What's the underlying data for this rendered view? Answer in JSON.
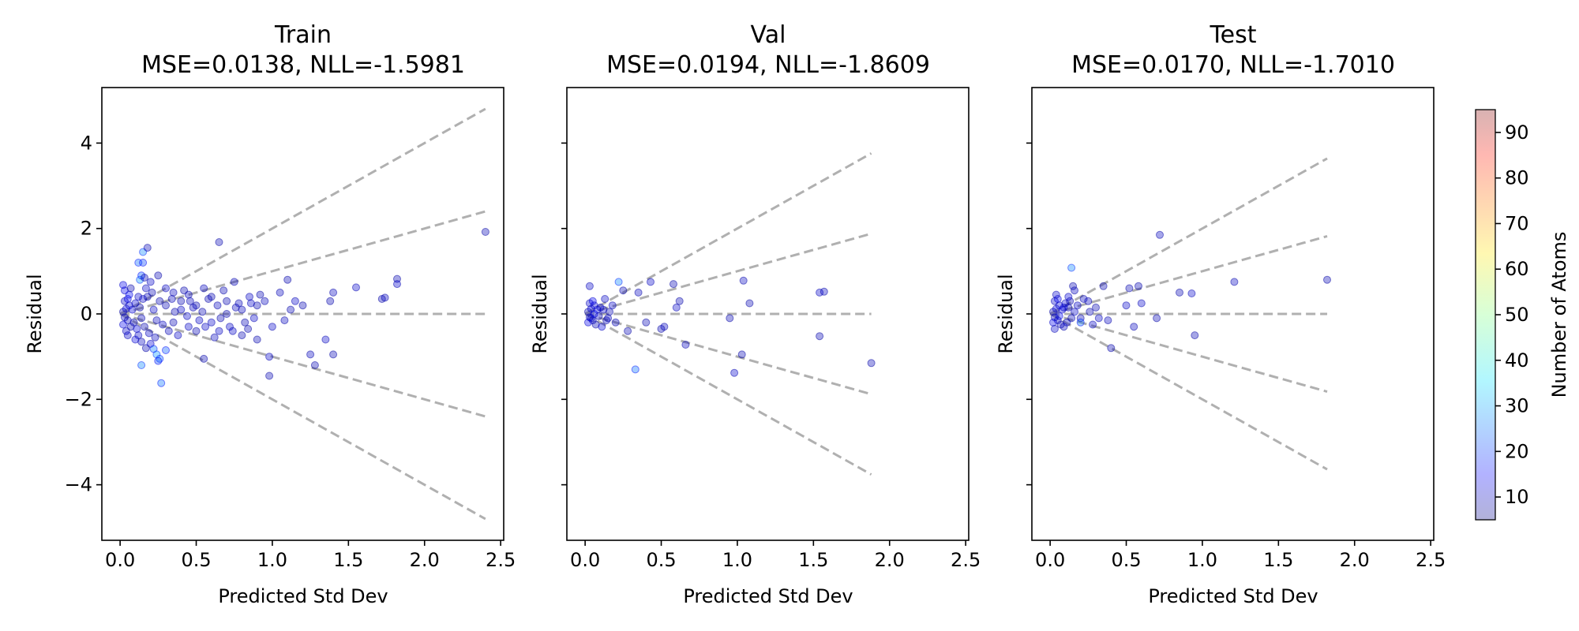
{
  "chart_data": [
    {
      "type": "scatter",
      "title": "Train",
      "subtitle": "MSE=0.0138, NLL=-1.5981",
      "xlabel": "Predicted Std Dev",
      "ylabel": "Residual",
      "xlim": [
        -0.12,
        2.52
      ],
      "ylim": [
        -5.3,
        5.3
      ],
      "xticks": [
        0.0,
        0.5,
        1.0,
        1.5,
        2.0,
        2.5
      ],
      "xticklabels": [
        "0.0",
        "0.5",
        "1.0",
        "1.5",
        "2.0",
        "2.5"
      ],
      "yticks": [
        4,
        2,
        0,
        -2,
        -4
      ],
      "yticklabels": [
        "4",
        "2",
        "0",
        "−2",
        "−4"
      ],
      "guide_max_x": 2.4,
      "guide_multipliers": [
        2,
        1,
        0,
        -1,
        -2
      ],
      "points": [
        [
          0.02,
          0.05,
          10
        ],
        [
          0.03,
          -0.08,
          12
        ],
        [
          0.04,
          0.12,
          14
        ],
        [
          0.05,
          -0.15,
          11
        ],
        [
          0.06,
          0.2,
          13
        ],
        [
          0.02,
          -0.25,
          15
        ],
        [
          0.03,
          0.3,
          12
        ],
        [
          0.05,
          0.35,
          16
        ],
        [
          0.07,
          -0.3,
          10
        ],
        [
          0.08,
          0.1,
          14
        ],
        [
          0.04,
          -0.4,
          12
        ],
        [
          0.06,
          0.45,
          17
        ],
        [
          0.09,
          -0.2,
          11
        ],
        [
          0.1,
          0.25,
          13
        ],
        [
          0.03,
          0.55,
          15
        ],
        [
          0.05,
          -0.5,
          12
        ],
        [
          0.07,
          0.6,
          10
        ],
        [
          0.11,
          -0.35,
          14
        ],
        [
          0.12,
          0.4,
          12
        ],
        [
          0.02,
          0.68,
          15
        ],
        [
          0.13,
          0.8,
          30
        ],
        [
          0.15,
          1.45,
          28
        ],
        [
          0.18,
          1.55,
          10
        ],
        [
          0.12,
          1.2,
          25
        ],
        [
          0.15,
          1.2,
          22
        ],
        [
          0.14,
          0.9,
          24
        ],
        [
          0.16,
          0.85,
          10
        ],
        [
          0.2,
          0.75,
          12
        ],
        [
          0.1,
          -0.6,
          14
        ],
        [
          0.14,
          -0.65,
          11
        ],
        [
          0.17,
          -0.8,
          10
        ],
        [
          0.2,
          -0.7,
          13
        ],
        [
          0.14,
          -1.2,
          28
        ],
        [
          0.24,
          -0.95,
          30
        ],
        [
          0.26,
          -1.05,
          26
        ],
        [
          0.25,
          -1.1,
          22
        ],
        [
          0.27,
          -1.62,
          26
        ],
        [
          0.22,
          -0.82,
          27
        ],
        [
          0.3,
          -0.85,
          24
        ],
        [
          0.25,
          0.9,
          10
        ],
        [
          0.3,
          0.6,
          12
        ],
        [
          0.35,
          0.5,
          11
        ],
        [
          0.4,
          0.3,
          10
        ],
        [
          0.45,
          -0.3,
          12
        ],
        [
          0.5,
          0.2,
          10
        ],
        [
          0.55,
          0.6,
          11
        ],
        [
          0.6,
          0.4,
          10
        ],
        [
          0.65,
          1.68,
          10
        ],
        [
          0.65,
          -0.4,
          12
        ],
        [
          0.7,
          0.3,
          10
        ],
        [
          0.75,
          0.75,
          11
        ],
        [
          0.8,
          -0.5,
          10
        ],
        [
          0.85,
          0.4,
          12
        ],
        [
          0.9,
          -0.6,
          10
        ],
        [
          0.95,
          0.3,
          11
        ],
        [
          0.55,
          -1.05,
          10
        ],
        [
          0.98,
          -1.0,
          12
        ],
        [
          0.98,
          -1.45,
          10
        ],
        [
          1.05,
          0.5,
          11
        ],
        [
          1.1,
          0.8,
          10
        ],
        [
          1.15,
          0.3,
          12
        ],
        [
          1.2,
          0.2,
          10
        ],
        [
          1.25,
          -0.95,
          11
        ],
        [
          1.28,
          -1.2,
          10
        ],
        [
          1.35,
          -0.6,
          12
        ],
        [
          1.38,
          0.3,
          10
        ],
        [
          1.4,
          0.5,
          11
        ],
        [
          1.4,
          -0.95,
          10
        ],
        [
          1.55,
          0.62,
          12
        ],
        [
          1.72,
          0.35,
          10
        ],
        [
          1.74,
          0.38,
          11
        ],
        [
          1.82,
          0.82,
          10
        ],
        [
          1.82,
          0.7,
          12
        ],
        [
          2.4,
          1.92,
          10
        ],
        [
          0.35,
          -0.2,
          10
        ],
        [
          0.4,
          0.1,
          12
        ],
        [
          0.45,
          0.45,
          11
        ],
        [
          0.5,
          -0.4,
          10
        ],
        [
          0.6,
          -0.2,
          12
        ],
        [
          0.7,
          0.0,
          10
        ],
        [
          0.8,
          0.1,
          11
        ],
        [
          0.9,
          0.2,
          10
        ],
        [
          1.0,
          -0.3,
          12
        ],
        [
          0.3,
          0.2,
          10
        ],
        [
          0.32,
          -0.4,
          11
        ],
        [
          0.38,
          -0.5,
          12
        ],
        [
          0.42,
          0.55,
          10
        ],
        [
          0.48,
          0.15,
          11
        ],
        [
          0.52,
          -0.15,
          12
        ],
        [
          0.58,
          0.35,
          10
        ],
        [
          0.62,
          -0.55,
          11
        ],
        [
          0.68,
          0.55,
          10
        ],
        [
          0.72,
          -0.3,
          12
        ],
        [
          0.78,
          0.25,
          11
        ],
        [
          0.82,
          -0.2,
          10
        ],
        [
          0.88,
          -0.1,
          12
        ],
        [
          0.92,
          0.45,
          10
        ],
        [
          1.08,
          -0.15,
          11
        ],
        [
          1.12,
          0.1,
          10
        ],
        [
          0.22,
          0.1,
          12
        ],
        [
          0.24,
          -0.15,
          11
        ],
        [
          0.26,
          0.3,
          10
        ],
        [
          0.28,
          -0.25,
          12
        ],
        [
          0.34,
          0.35,
          11
        ],
        [
          0.36,
          0.05,
          10
        ],
        [
          0.44,
          -0.05,
          12
        ],
        [
          0.46,
          0.3,
          11
        ],
        [
          0.54,
          0.05,
          10
        ],
        [
          0.56,
          -0.3,
          12
        ],
        [
          0.64,
          0.2,
          11
        ],
        [
          0.66,
          -0.1,
          10
        ],
        [
          0.74,
          -0.4,
          12
        ],
        [
          0.76,
          0.15,
          11
        ],
        [
          0.84,
          -0.35,
          10
        ],
        [
          0.86,
          0.25,
          12
        ],
        [
          0.18,
          0.4,
          11
        ],
        [
          0.19,
          -0.45,
          12
        ],
        [
          0.21,
          0.5,
          10
        ],
        [
          0.23,
          -0.55,
          11
        ],
        [
          0.17,
          0.6,
          12
        ],
        [
          0.16,
          -0.3,
          10
        ],
        [
          0.15,
          0.35,
          12
        ],
        [
          0.14,
          -0.1,
          11
        ],
        [
          0.13,
          0.15,
          10
        ],
        [
          0.12,
          -0.5,
          12
        ]
      ]
    },
    {
      "type": "scatter",
      "title": "Val",
      "subtitle": "MSE=0.0194, NLL=-1.8609",
      "xlabel": "Predicted Std Dev",
      "ylabel": "Residual",
      "xlim": [
        -0.12,
        2.52
      ],
      "ylim": [
        -5.3,
        5.3
      ],
      "xticks": [
        0.0,
        0.5,
        1.0,
        1.5,
        2.0,
        2.5
      ],
      "xticklabels": [
        "0.0",
        "0.5",
        "1.0",
        "1.5",
        "2.0",
        "2.5"
      ],
      "yticks": [
        4,
        2,
        0,
        -2,
        -4
      ],
      "guide_max_x": 1.88,
      "guide_multipliers": [
        2,
        1,
        0,
        -1,
        -2
      ],
      "points": [
        [
          0.02,
          0.05,
          10
        ],
        [
          0.03,
          -0.08,
          12
        ],
        [
          0.04,
          0.12,
          14
        ],
        [
          0.05,
          -0.15,
          11
        ],
        [
          0.06,
          0.2,
          13
        ],
        [
          0.02,
          -0.2,
          15
        ],
        [
          0.03,
          0.25,
          12
        ],
        [
          0.05,
          0.3,
          16
        ],
        [
          0.07,
          -0.25,
          10
        ],
        [
          0.08,
          0.1,
          14
        ],
        [
          0.04,
          -0.1,
          12
        ],
        [
          0.06,
          0.0,
          17
        ],
        [
          0.09,
          -0.05,
          11
        ],
        [
          0.1,
          0.15,
          13
        ],
        [
          0.03,
          0.65,
          12
        ],
        [
          0.22,
          0.75,
          28
        ],
        [
          0.25,
          0.55,
          10
        ],
        [
          0.2,
          -0.2,
          11
        ],
        [
          0.28,
          -0.4,
          10
        ],
        [
          0.33,
          -1.3,
          26
        ],
        [
          0.35,
          0.5,
          11
        ],
        [
          0.4,
          -0.2,
          10
        ],
        [
          0.43,
          0.75,
          12
        ],
        [
          0.5,
          -0.35,
          10
        ],
        [
          0.52,
          -0.3,
          11
        ],
        [
          0.58,
          0.7,
          10
        ],
        [
          0.6,
          0.15,
          12
        ],
        [
          0.62,
          0.3,
          10
        ],
        [
          0.66,
          -0.72,
          11
        ],
        [
          0.95,
          -0.1,
          10
        ],
        [
          0.98,
          -1.38,
          12
        ],
        [
          1.03,
          -0.95,
          10
        ],
        [
          1.04,
          0.78,
          11
        ],
        [
          1.08,
          0.25,
          10
        ],
        [
          1.54,
          0.5,
          12
        ],
        [
          1.54,
          -0.52,
          10
        ],
        [
          1.57,
          0.52,
          11
        ],
        [
          1.88,
          -1.15,
          10
        ],
        [
          0.12,
          0.1,
          12
        ],
        [
          0.14,
          -0.15,
          11
        ],
        [
          0.16,
          0.05,
          10
        ],
        [
          0.18,
          0.2,
          12
        ],
        [
          0.11,
          -0.3,
          14
        ],
        [
          0.13,
          0.35,
          12
        ],
        [
          0.15,
          -0.1,
          11
        ]
      ]
    },
    {
      "type": "scatter",
      "title": "Test",
      "subtitle": "MSE=0.0170, NLL=-1.7010",
      "xlabel": "Predicted Std Dev",
      "ylabel": "Residual",
      "xlim": [
        -0.12,
        2.52
      ],
      "ylim": [
        -5.3,
        5.3
      ],
      "xticks": [
        0.0,
        0.5,
        1.0,
        1.5,
        2.0,
        2.5
      ],
      "xticklabels": [
        "0.0",
        "0.5",
        "1.0",
        "1.5",
        "2.0",
        "2.5"
      ],
      "yticks": [
        4,
        2,
        0,
        -2,
        -4
      ],
      "guide_max_x": 1.82,
      "guide_multipliers": [
        2,
        1,
        0,
        -1,
        -2
      ],
      "points": [
        [
          0.02,
          0.05,
          10
        ],
        [
          0.03,
          -0.08,
          12
        ],
        [
          0.04,
          0.12,
          14
        ],
        [
          0.05,
          -0.15,
          11
        ],
        [
          0.06,
          0.2,
          13
        ],
        [
          0.02,
          -0.2,
          15
        ],
        [
          0.03,
          0.3,
          12
        ],
        [
          0.05,
          0.35,
          16
        ],
        [
          0.07,
          -0.25,
          10
        ],
        [
          0.08,
          0.1,
          14
        ],
        [
          0.04,
          0.45,
          12
        ],
        [
          0.06,
          -0.05,
          17
        ],
        [
          0.09,
          -0.3,
          11
        ],
        [
          0.1,
          0.25,
          13
        ],
        [
          0.03,
          -0.35,
          12
        ],
        [
          0.14,
          1.08,
          28
        ],
        [
          0.15,
          0.65,
          10
        ],
        [
          0.16,
          0.55,
          11
        ],
        [
          0.18,
          0.2,
          12
        ],
        [
          0.2,
          -0.1,
          10
        ],
        [
          0.2,
          -0.2,
          26
        ],
        [
          0.25,
          0.3,
          11
        ],
        [
          0.3,
          0.15,
          10
        ],
        [
          0.32,
          -0.1,
          12
        ],
        [
          0.35,
          0.65,
          10
        ],
        [
          0.38,
          -0.15,
          11
        ],
        [
          0.4,
          -0.8,
          10
        ],
        [
          0.5,
          0.2,
          12
        ],
        [
          0.52,
          0.6,
          10
        ],
        [
          0.55,
          -0.3,
          11
        ],
        [
          0.58,
          0.65,
          10
        ],
        [
          0.6,
          0.25,
          12
        ],
        [
          0.7,
          -0.1,
          10
        ],
        [
          0.72,
          1.85,
          11
        ],
        [
          0.85,
          0.5,
          10
        ],
        [
          0.93,
          0.48,
          12
        ],
        [
          0.95,
          -0.5,
          10
        ],
        [
          1.21,
          0.75,
          11
        ],
        [
          1.82,
          0.8,
          10
        ],
        [
          0.12,
          0.15,
          11
        ],
        [
          0.11,
          -0.2,
          12
        ],
        [
          0.13,
          0.3,
          10
        ],
        [
          0.14,
          -0.1,
          11
        ],
        [
          0.16,
          0.05,
          12
        ],
        [
          0.22,
          0.35,
          11
        ],
        [
          0.26,
          0.05,
          10
        ],
        [
          0.28,
          -0.25,
          12
        ],
        [
          0.12,
          0.4,
          13
        ],
        [
          0.09,
          0.15,
          14
        ]
      ]
    }
  ],
  "colorbar": {
    "label": "Number of Atoms",
    "colormap": "jet",
    "range": [
      5,
      95
    ],
    "ticks": [
      10,
      20,
      30,
      40,
      50,
      60,
      70,
      80,
      90
    ],
    "alpha": 0.3
  },
  "colors": {
    "guide_line": "#b0b0b0",
    "axes": "#000000",
    "background": "#ffffff"
  }
}
